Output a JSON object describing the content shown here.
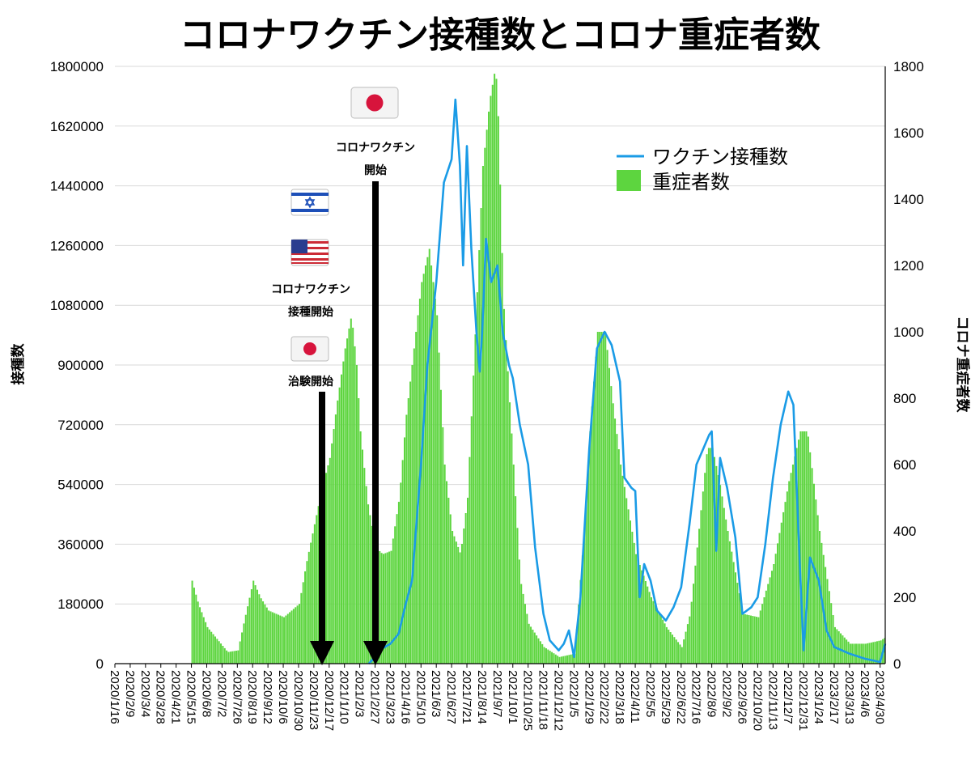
{
  "chart_data": {
    "type": "bar+line",
    "title": "コロナワクチン接種数とコロナ重症者数",
    "ylabel_left": "接種数",
    "ylabel_right": "コロナ重症者数",
    "ylim_left": [
      0,
      1800000
    ],
    "ylim_right": [
      0,
      1800
    ],
    "yticks_left": [
      "0",
      "180000",
      "360000",
      "540000",
      "720000",
      "900000",
      "1080000",
      "1260000",
      "1440000",
      "1620000",
      "1800000"
    ],
    "yticks_right": [
      "0",
      "200",
      "400",
      "600",
      "800",
      "1000",
      "1200",
      "1400",
      "1600",
      "1800"
    ],
    "x_start": "2020/1/16",
    "x_end": "2023/5/8",
    "xticks": [
      "2020/1/16",
      "2020/2/9",
      "2020/3/4",
      "2020/3/28",
      "2020/4/21",
      "2020/5/15",
      "2020/6/8",
      "2020/7/2",
      "2020/7/26",
      "2020/8/19",
      "2020/9/12",
      "2020/10/6",
      "2020/10/30",
      "2020/11/23",
      "2020/12/17",
      "2021/1/10",
      "2021/2/3",
      "2021/2/27",
      "2021/3/23",
      "2021/4/16",
      "2021/5/10",
      "2021/6/3",
      "2021/6/27",
      "2021/7/21",
      "2021/8/14",
      "2021/9/7",
      "2021/10/1",
      "2021/10/25",
      "2021/11/18",
      "2021/12/12",
      "2022/1/5",
      "2022/1/29",
      "2022/2/22",
      "2022/3/18",
      "2022/4/11",
      "2022/5/5",
      "2022/5/29",
      "2022/6/22",
      "2022/7/16",
      "2022/8/9",
      "2022/9/2",
      "2022/9/26",
      "2022/10/20",
      "2022/11/13",
      "2022/12/7",
      "2022/12/31",
      "2023/1/24",
      "2023/2/17",
      "2023/3/13",
      "2023/4/6",
      "2023/4/30"
    ],
    "legend_position": "top-right",
    "series": [
      {
        "name": "ワクチン接種数",
        "axis": "left",
        "color": "#1a9be6",
        "style": "line",
        "points": [
          [
            "2021/2/17",
            0
          ],
          [
            "2021/2/27",
            20000
          ],
          [
            "2021/3/10",
            45000
          ],
          [
            "2021/3/23",
            60000
          ],
          [
            "2021/4/5",
            90000
          ],
          [
            "2021/4/16",
            180000
          ],
          [
            "2021/4/26",
            250000
          ],
          [
            "2021/5/10",
            600000
          ],
          [
            "2021/5/20",
            900000
          ],
          [
            "2021/6/3",
            1150000
          ],
          [
            "2021/6/15",
            1450000
          ],
          [
            "2021/6/27",
            1520000
          ],
          [
            "2021/7/3",
            1700000
          ],
          [
            "2021/7/10",
            1500000
          ],
          [
            "2021/7/15",
            1200000
          ],
          [
            "2021/7/21",
            1560000
          ],
          [
            "2021/7/28",
            1250000
          ],
          [
            "2021/8/5",
            1000000
          ],
          [
            "2021/8/10",
            880000
          ],
          [
            "2021/8/14",
            1000000
          ],
          [
            "2021/8/20",
            1280000
          ],
          [
            "2021/8/28",
            1150000
          ],
          [
            "2021/9/7",
            1200000
          ],
          [
            "2021/9/15",
            1000000
          ],
          [
            "2021/9/25",
            900000
          ],
          [
            "2021/10/1",
            860000
          ],
          [
            "2021/10/12",
            720000
          ],
          [
            "2021/10/25",
            600000
          ],
          [
            "2021/11/5",
            350000
          ],
          [
            "2021/11/18",
            150000
          ],
          [
            "2021/11/28",
            70000
          ],
          [
            "2021/12/12",
            40000
          ],
          [
            "2021/12/20",
            60000
          ],
          [
            "2021/12/28",
            100000
          ],
          [
            "2022/1/5",
            20000
          ],
          [
            "2022/1/15",
            200000
          ],
          [
            "2022/1/29",
            650000
          ],
          [
            "2022/2/10",
            950000
          ],
          [
            "2022/2/22",
            1000000
          ],
          [
            "2022/3/5",
            960000
          ],
          [
            "2022/3/18",
            850000
          ],
          [
            "2022/3/25",
            560000
          ],
          [
            "2022/4/5",
            530000
          ],
          [
            "2022/4/11",
            520000
          ],
          [
            "2022/4/18",
            200000
          ],
          [
            "2022/4/25",
            300000
          ],
          [
            "2022/5/5",
            250000
          ],
          [
            "2022/5/15",
            160000
          ],
          [
            "2022/5/29",
            130000
          ],
          [
            "2022/6/10",
            170000
          ],
          [
            "2022/6/22",
            230000
          ],
          [
            "2022/7/5",
            420000
          ],
          [
            "2022/7/16",
            600000
          ],
          [
            "2022/7/25",
            640000
          ],
          [
            "2022/8/5",
            690000
          ],
          [
            "2022/8/9",
            700000
          ],
          [
            "2022/8/16",
            340000
          ],
          [
            "2022/8/22",
            620000
          ],
          [
            "2022/9/2",
            530000
          ],
          [
            "2022/9/15",
            380000
          ],
          [
            "2022/9/26",
            150000
          ],
          [
            "2022/10/10",
            170000
          ],
          [
            "2022/10/20",
            200000
          ],
          [
            "2022/11/1",
            360000
          ],
          [
            "2022/11/13",
            560000
          ],
          [
            "2022/11/25",
            720000
          ],
          [
            "2022/12/7",
            820000
          ],
          [
            "2022/12/15",
            780000
          ],
          [
            "2022/12/25",
            300000
          ],
          [
            "2022/12/31",
            40000
          ],
          [
            "2023/1/10",
            320000
          ],
          [
            "2023/1/24",
            250000
          ],
          [
            "2023/2/5",
            100000
          ],
          [
            "2023/2/17",
            50000
          ],
          [
            "2023/3/13",
            30000
          ],
          [
            "2023/4/6",
            15000
          ],
          [
            "2023/4/30",
            5000
          ],
          [
            "2023/5/8",
            60000
          ]
        ]
      },
      {
        "name": "重症者数",
        "axis": "right",
        "color": "#5dd53f",
        "style": "bar",
        "points": [
          [
            "2020/1/16",
            0
          ],
          [
            "2020/5/12",
            0
          ],
          [
            "2020/5/15",
            250
          ],
          [
            "2020/5/25",
            180
          ],
          [
            "2020/6/8",
            110
          ],
          [
            "2020/6/25",
            70
          ],
          [
            "2020/7/10",
            35
          ],
          [
            "2020/7/26",
            40
          ],
          [
            "2020/8/5",
            130
          ],
          [
            "2020/8/19",
            250
          ],
          [
            "2020/8/30",
            200
          ],
          [
            "2020/9/12",
            160
          ],
          [
            "2020/10/6",
            140
          ],
          [
            "2020/10/30",
            180
          ],
          [
            "2020/11/10",
            300
          ],
          [
            "2020/11/23",
            420
          ],
          [
            "2020/12/5",
            530
          ],
          [
            "2020/12/17",
            620
          ],
          [
            "2020/12/28",
            780
          ],
          [
            "2021/1/10",
            950
          ],
          [
            "2021/1/20",
            1050
          ],
          [
            "2021/1/28",
            900
          ],
          [
            "2021/2/3",
            700
          ],
          [
            "2021/2/15",
            480
          ],
          [
            "2021/2/27",
            350
          ],
          [
            "2021/3/10",
            330
          ],
          [
            "2021/3/23",
            340
          ],
          [
            "2021/4/5",
            500
          ],
          [
            "2021/4/16",
            750
          ],
          [
            "2021/4/28",
            950
          ],
          [
            "2021/5/10",
            1150
          ],
          [
            "2021/5/22",
            1250
          ],
          [
            "2021/6/3",
            1050
          ],
          [
            "2021/6/15",
            600
          ],
          [
            "2021/6/27",
            400
          ],
          [
            "2021/7/10",
            330
          ],
          [
            "2021/7/21",
            500
          ],
          [
            "2021/8/1",
            950
          ],
          [
            "2021/8/14",
            1500
          ],
          [
            "2021/8/25",
            1700
          ],
          [
            "2021/9/3",
            1800
          ],
          [
            "2021/9/7",
            1650
          ],
          [
            "2021/9/15",
            1100
          ],
          [
            "2021/10/1",
            600
          ],
          [
            "2021/10/12",
            250
          ],
          [
            "2021/10/25",
            120
          ],
          [
            "2021/11/18",
            50
          ],
          [
            "2021/12/12",
            20
          ],
          [
            "2022/1/5",
            30
          ],
          [
            "2022/1/20",
            400
          ],
          [
            "2022/1/29",
            700
          ],
          [
            "2022/2/10",
            1000
          ],
          [
            "2022/2/22",
            1000
          ],
          [
            "2022/3/5",
            800
          ],
          [
            "2022/3/18",
            600
          ],
          [
            "2022/4/11",
            330
          ],
          [
            "2022/5/5",
            200
          ],
          [
            "2022/5/29",
            110
          ],
          [
            "2022/6/22",
            50
          ],
          [
            "2022/7/5",
            150
          ],
          [
            "2022/7/16",
            350
          ],
          [
            "2022/8/1",
            650
          ],
          [
            "2022/8/9",
            650
          ],
          [
            "2022/8/20",
            550
          ],
          [
            "2022/9/2",
            400
          ],
          [
            "2022/9/26",
            150
          ],
          [
            "2022/10/20",
            140
          ],
          [
            "2022/11/13",
            300
          ],
          [
            "2022/12/7",
            550
          ],
          [
            "2022/12/25",
            700
          ],
          [
            "2023/1/5",
            700
          ],
          [
            "2023/1/24",
            400
          ],
          [
            "2023/2/17",
            110
          ],
          [
            "2023/3/13",
            60
          ],
          [
            "2023/4/6",
            60
          ],
          [
            "2023/4/30",
            70
          ],
          [
            "2023/5/8",
            80
          ]
        ]
      }
    ],
    "annotations": [
      {
        "label_lines": [
          "コロナワクチン",
          "開始"
        ],
        "flag": "japan-flag",
        "arrow_date": "2021/2/27"
      },
      {
        "label_lines": [
          "コロナワクチン",
          "接種開始"
        ],
        "flags": [
          "israel-flag",
          "usa-flag"
        ]
      },
      {
        "label_lines": [
          "治験開始"
        ],
        "flag": "japan-flag",
        "arrow_date": "2020/12/17"
      }
    ]
  }
}
